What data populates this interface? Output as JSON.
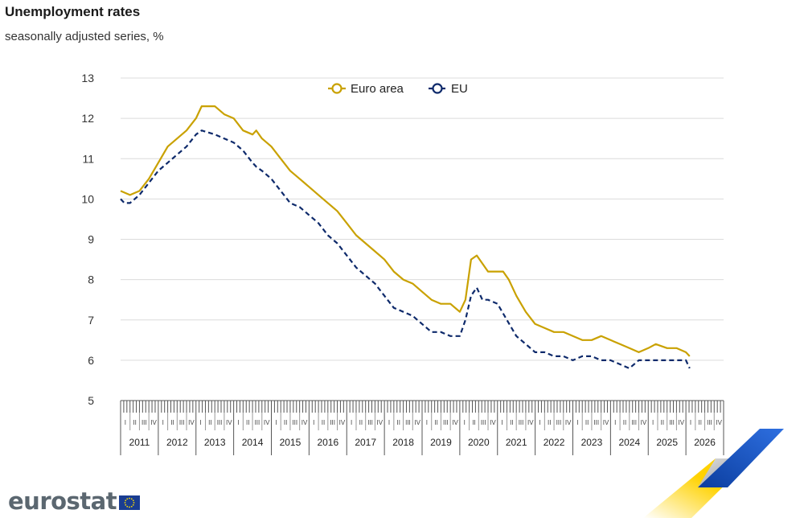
{
  "header": {
    "title": "Unemployment rates",
    "subtitle": "seasonally adjusted series, %"
  },
  "logo": {
    "text": "eurostat",
    "flag_icon": "eu-flag-icon"
  },
  "colors": {
    "euro_area": "#c9a100",
    "eu": "#0e2a6b",
    "grid": "#dcdcdc",
    "axis": "#555555"
  },
  "chart_data": {
    "type": "line",
    "title": "Unemployment rates",
    "subtitle": "seasonally adjusted series, %",
    "xlabel": "",
    "ylabel": "",
    "ylim": [
      5,
      13
    ],
    "yticks": [
      "5",
      "6",
      "7",
      "8",
      "9",
      "10",
      "11",
      "12",
      "13"
    ],
    "xlim": [
      2011.0,
      2027.0
    ],
    "years": [
      "2011",
      "2012",
      "2013",
      "2014",
      "2015",
      "2016",
      "2017",
      "2018",
      "2019",
      "2020",
      "2021",
      "2022",
      "2023",
      "2024",
      "2025",
      "2026"
    ],
    "quarters": [
      "I",
      "II",
      "III",
      "IV"
    ],
    "grid": true,
    "legend": "top-center",
    "series": [
      {
        "name": "Euro area",
        "style": "solid",
        "points": [
          [
            2011.0,
            10.2
          ],
          [
            2011.25,
            10.1
          ],
          [
            2011.5,
            10.2
          ],
          [
            2011.75,
            10.5
          ],
          [
            2012.0,
            10.9
          ],
          [
            2012.25,
            11.3
          ],
          [
            2012.5,
            11.5
          ],
          [
            2012.75,
            11.7
          ],
          [
            2013.0,
            12.0
          ],
          [
            2013.15,
            12.3
          ],
          [
            2013.5,
            12.3
          ],
          [
            2013.75,
            12.1
          ],
          [
            2014.0,
            12.0
          ],
          [
            2014.25,
            11.7
          ],
          [
            2014.5,
            11.6
          ],
          [
            2014.6,
            11.7
          ],
          [
            2014.75,
            11.5
          ],
          [
            2015.0,
            11.3
          ],
          [
            2015.25,
            11.0
          ],
          [
            2015.5,
            10.7
          ],
          [
            2015.75,
            10.5
          ],
          [
            2016.0,
            10.3
          ],
          [
            2016.25,
            10.1
          ],
          [
            2016.5,
            9.9
          ],
          [
            2016.75,
            9.7
          ],
          [
            2017.0,
            9.4
          ],
          [
            2017.25,
            9.1
          ],
          [
            2017.5,
            8.9
          ],
          [
            2017.75,
            8.7
          ],
          [
            2018.0,
            8.5
          ],
          [
            2018.25,
            8.2
          ],
          [
            2018.5,
            8.0
          ],
          [
            2018.75,
            7.9
          ],
          [
            2019.0,
            7.7
          ],
          [
            2019.25,
            7.5
          ],
          [
            2019.5,
            7.4
          ],
          [
            2019.75,
            7.4
          ],
          [
            2020.0,
            7.2
          ],
          [
            2020.15,
            7.5
          ],
          [
            2020.3,
            8.5
          ],
          [
            2020.45,
            8.6
          ],
          [
            2020.6,
            8.4
          ],
          [
            2020.75,
            8.2
          ],
          [
            2021.0,
            8.2
          ],
          [
            2021.15,
            8.2
          ],
          [
            2021.3,
            8.0
          ],
          [
            2021.5,
            7.6
          ],
          [
            2021.75,
            7.2
          ],
          [
            2022.0,
            6.9
          ],
          [
            2022.25,
            6.8
          ],
          [
            2022.5,
            6.7
          ],
          [
            2022.75,
            6.7
          ],
          [
            2023.0,
            6.6
          ],
          [
            2023.25,
            6.5
          ],
          [
            2023.5,
            6.5
          ],
          [
            2023.75,
            6.6
          ],
          [
            2024.0,
            6.5
          ],
          [
            2024.25,
            6.4
          ],
          [
            2024.5,
            6.3
          ],
          [
            2024.75,
            6.2
          ],
          [
            2025.0,
            6.3
          ],
          [
            2025.2,
            6.4
          ],
          [
            2025.5,
            6.3
          ],
          [
            2025.75,
            6.3
          ],
          [
            2026.0,
            6.2
          ],
          [
            2026.1,
            6.1
          ]
        ]
      },
      {
        "name": "EU",
        "style": "dashed",
        "points": [
          [
            2011.0,
            10.0
          ],
          [
            2011.1,
            9.9
          ],
          [
            2011.25,
            9.9
          ],
          [
            2011.5,
            10.1
          ],
          [
            2011.75,
            10.4
          ],
          [
            2012.0,
            10.7
          ],
          [
            2012.25,
            10.9
          ],
          [
            2012.5,
            11.1
          ],
          [
            2012.75,
            11.3
          ],
          [
            2013.0,
            11.6
          ],
          [
            2013.15,
            11.7
          ],
          [
            2013.5,
            11.6
          ],
          [
            2013.75,
            11.5
          ],
          [
            2014.0,
            11.4
          ],
          [
            2014.25,
            11.2
          ],
          [
            2014.5,
            10.9
          ],
          [
            2014.6,
            10.8
          ],
          [
            2014.75,
            10.7
          ],
          [
            2015.0,
            10.5
          ],
          [
            2015.25,
            10.2
          ],
          [
            2015.5,
            9.9
          ],
          [
            2015.75,
            9.8
          ],
          [
            2016.0,
            9.6
          ],
          [
            2016.25,
            9.4
          ],
          [
            2016.5,
            9.1
          ],
          [
            2016.75,
            8.9
          ],
          [
            2017.0,
            8.6
          ],
          [
            2017.25,
            8.3
          ],
          [
            2017.5,
            8.1
          ],
          [
            2017.75,
            7.9
          ],
          [
            2018.0,
            7.6
          ],
          [
            2018.25,
            7.3
          ],
          [
            2018.5,
            7.2
          ],
          [
            2018.75,
            7.1
          ],
          [
            2019.0,
            6.9
          ],
          [
            2019.25,
            6.7
          ],
          [
            2019.5,
            6.7
          ],
          [
            2019.75,
            6.6
          ],
          [
            2020.0,
            6.6
          ],
          [
            2020.15,
            7.0
          ],
          [
            2020.3,
            7.6
          ],
          [
            2020.45,
            7.8
          ],
          [
            2020.6,
            7.5
          ],
          [
            2020.75,
            7.5
          ],
          [
            2021.0,
            7.4
          ],
          [
            2021.25,
            7.0
          ],
          [
            2021.5,
            6.6
          ],
          [
            2021.75,
            6.4
          ],
          [
            2022.0,
            6.2
          ],
          [
            2022.25,
            6.2
          ],
          [
            2022.5,
            6.1
          ],
          [
            2022.75,
            6.1
          ],
          [
            2023.0,
            6.0
          ],
          [
            2023.25,
            6.1
          ],
          [
            2023.5,
            6.1
          ],
          [
            2023.75,
            6.0
          ],
          [
            2024.0,
            6.0
          ],
          [
            2024.25,
            5.9
          ],
          [
            2024.5,
            5.8
          ],
          [
            2024.75,
            6.0
          ],
          [
            2025.0,
            6.0
          ],
          [
            2025.25,
            6.0
          ],
          [
            2025.5,
            6.0
          ],
          [
            2025.75,
            6.0
          ],
          [
            2026.0,
            6.0
          ],
          [
            2026.1,
            5.8
          ]
        ]
      }
    ]
  }
}
